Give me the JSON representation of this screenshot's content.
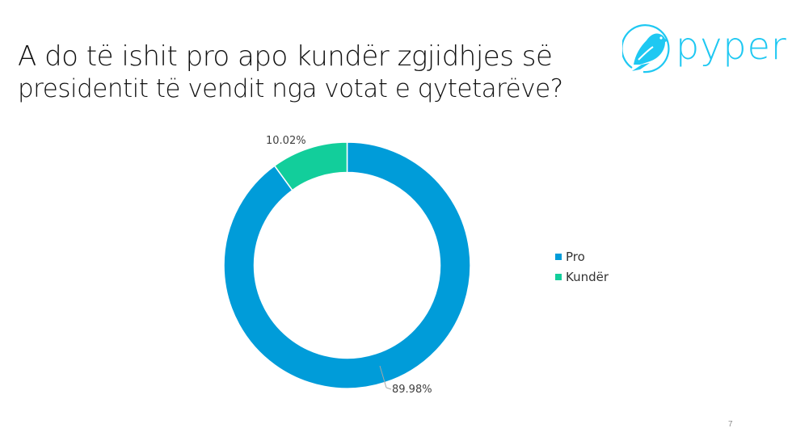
{
  "slide": {
    "title_line1": "A do të ishit pro apo kundër zgjidhjes së",
    "title_line2": "presidentit të vendit nga votat e qytetarëve?",
    "page_number": "7"
  },
  "logo": {
    "text": "pyper",
    "icon": "bird-in-circle-icon",
    "color": "#1EC8F2"
  },
  "chart_data": {
    "type": "pie",
    "variant": "donut",
    "title": "A do të ishit pro apo kundër zgjidhjes së presidentit të vendit nga votat e qytetarëve?",
    "categories": [
      "Pro",
      "Kundër"
    ],
    "values": [
      89.98,
      10.02
    ],
    "value_labels": [
      "89.98%",
      "10.02%"
    ],
    "colors": [
      "#009CD9",
      "#12CE9B"
    ],
    "legend_position": "right",
    "start_angle": 0,
    "direction": "clockwise"
  },
  "legend": {
    "items": [
      {
        "label": "Pro",
        "color": "#009CD9"
      },
      {
        "label": "Kundër",
        "color": "#12CE9B"
      }
    ]
  },
  "labels": {
    "pro": "89.98%",
    "kunder": "10.02%"
  }
}
